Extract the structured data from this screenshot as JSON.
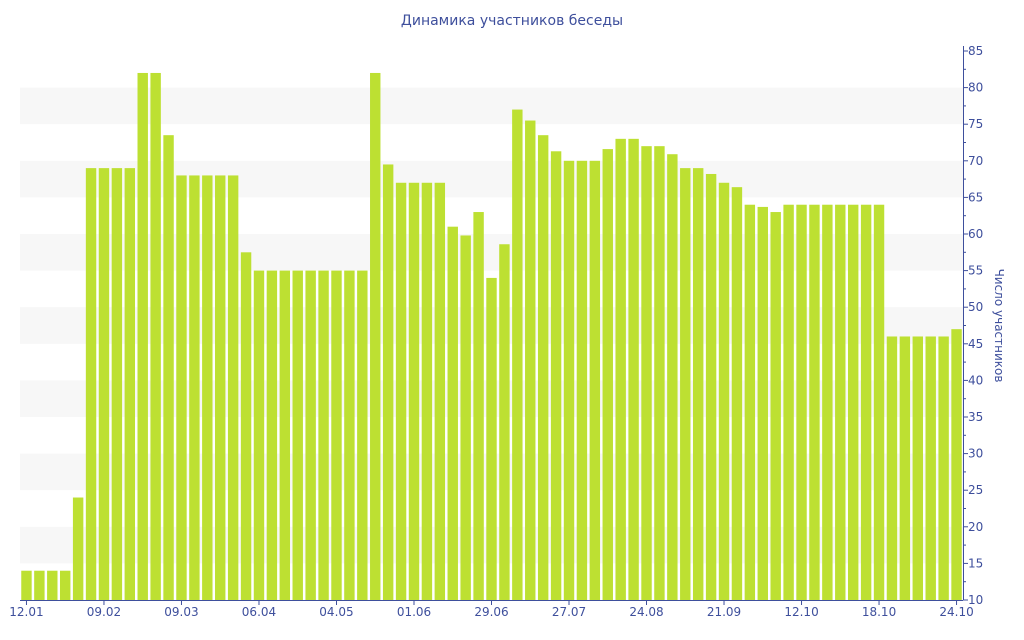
{
  "chart_data": {
    "type": "bar",
    "title": "Динамика участников беседы",
    "xlabel": "",
    "ylabel": "Число участников",
    "ylim": [
      10,
      85
    ],
    "yticks": [
      10,
      15,
      20,
      25,
      30,
      35,
      40,
      45,
      50,
      55,
      60,
      65,
      70,
      75,
      80,
      85
    ],
    "y_axis_side": "right",
    "grid": "alternating bands",
    "bar_color": "#bde032",
    "text_color": "#3e4f9c",
    "values": [
      14,
      14,
      14,
      14,
      24,
      69,
      69,
      69,
      69,
      82,
      82,
      73.5,
      68,
      68,
      68,
      68,
      68,
      57.5,
      55,
      55,
      55,
      55,
      55,
      55,
      55,
      55,
      55,
      82,
      69.5,
      67,
      67,
      67,
      67,
      61,
      59.8,
      63,
      54,
      58.6,
      77,
      75.5,
      73.5,
      71.3,
      70,
      70,
      70,
      71.6,
      73,
      73,
      72,
      72,
      70.9,
      69,
      69,
      68.2,
      67,
      66.4,
      64,
      63.7,
      63,
      64,
      64,
      64,
      64,
      64,
      64,
      64,
      64,
      46,
      46,
      46,
      46,
      46,
      47
    ],
    "xtick_labels": [
      {
        "bar": 0,
        "label": "12.01"
      },
      {
        "bar": 6,
        "label": "09.02"
      },
      {
        "bar": 12,
        "label": "09.03"
      },
      {
        "bar": 18,
        "label": "06.04"
      },
      {
        "bar": 24,
        "label": "04.05"
      },
      {
        "bar": 30,
        "label": "01.06"
      },
      {
        "bar": 36,
        "label": "29.06"
      },
      {
        "bar": 42,
        "label": "27.07"
      },
      {
        "bar": 48,
        "label": "24.08"
      },
      {
        "bar": 54,
        "label": "21.09"
      },
      {
        "bar": 60,
        "label": "12.10"
      },
      {
        "bar": 66,
        "label": "18.10"
      },
      {
        "bar": 72,
        "label": "24.10"
      }
    ]
  }
}
